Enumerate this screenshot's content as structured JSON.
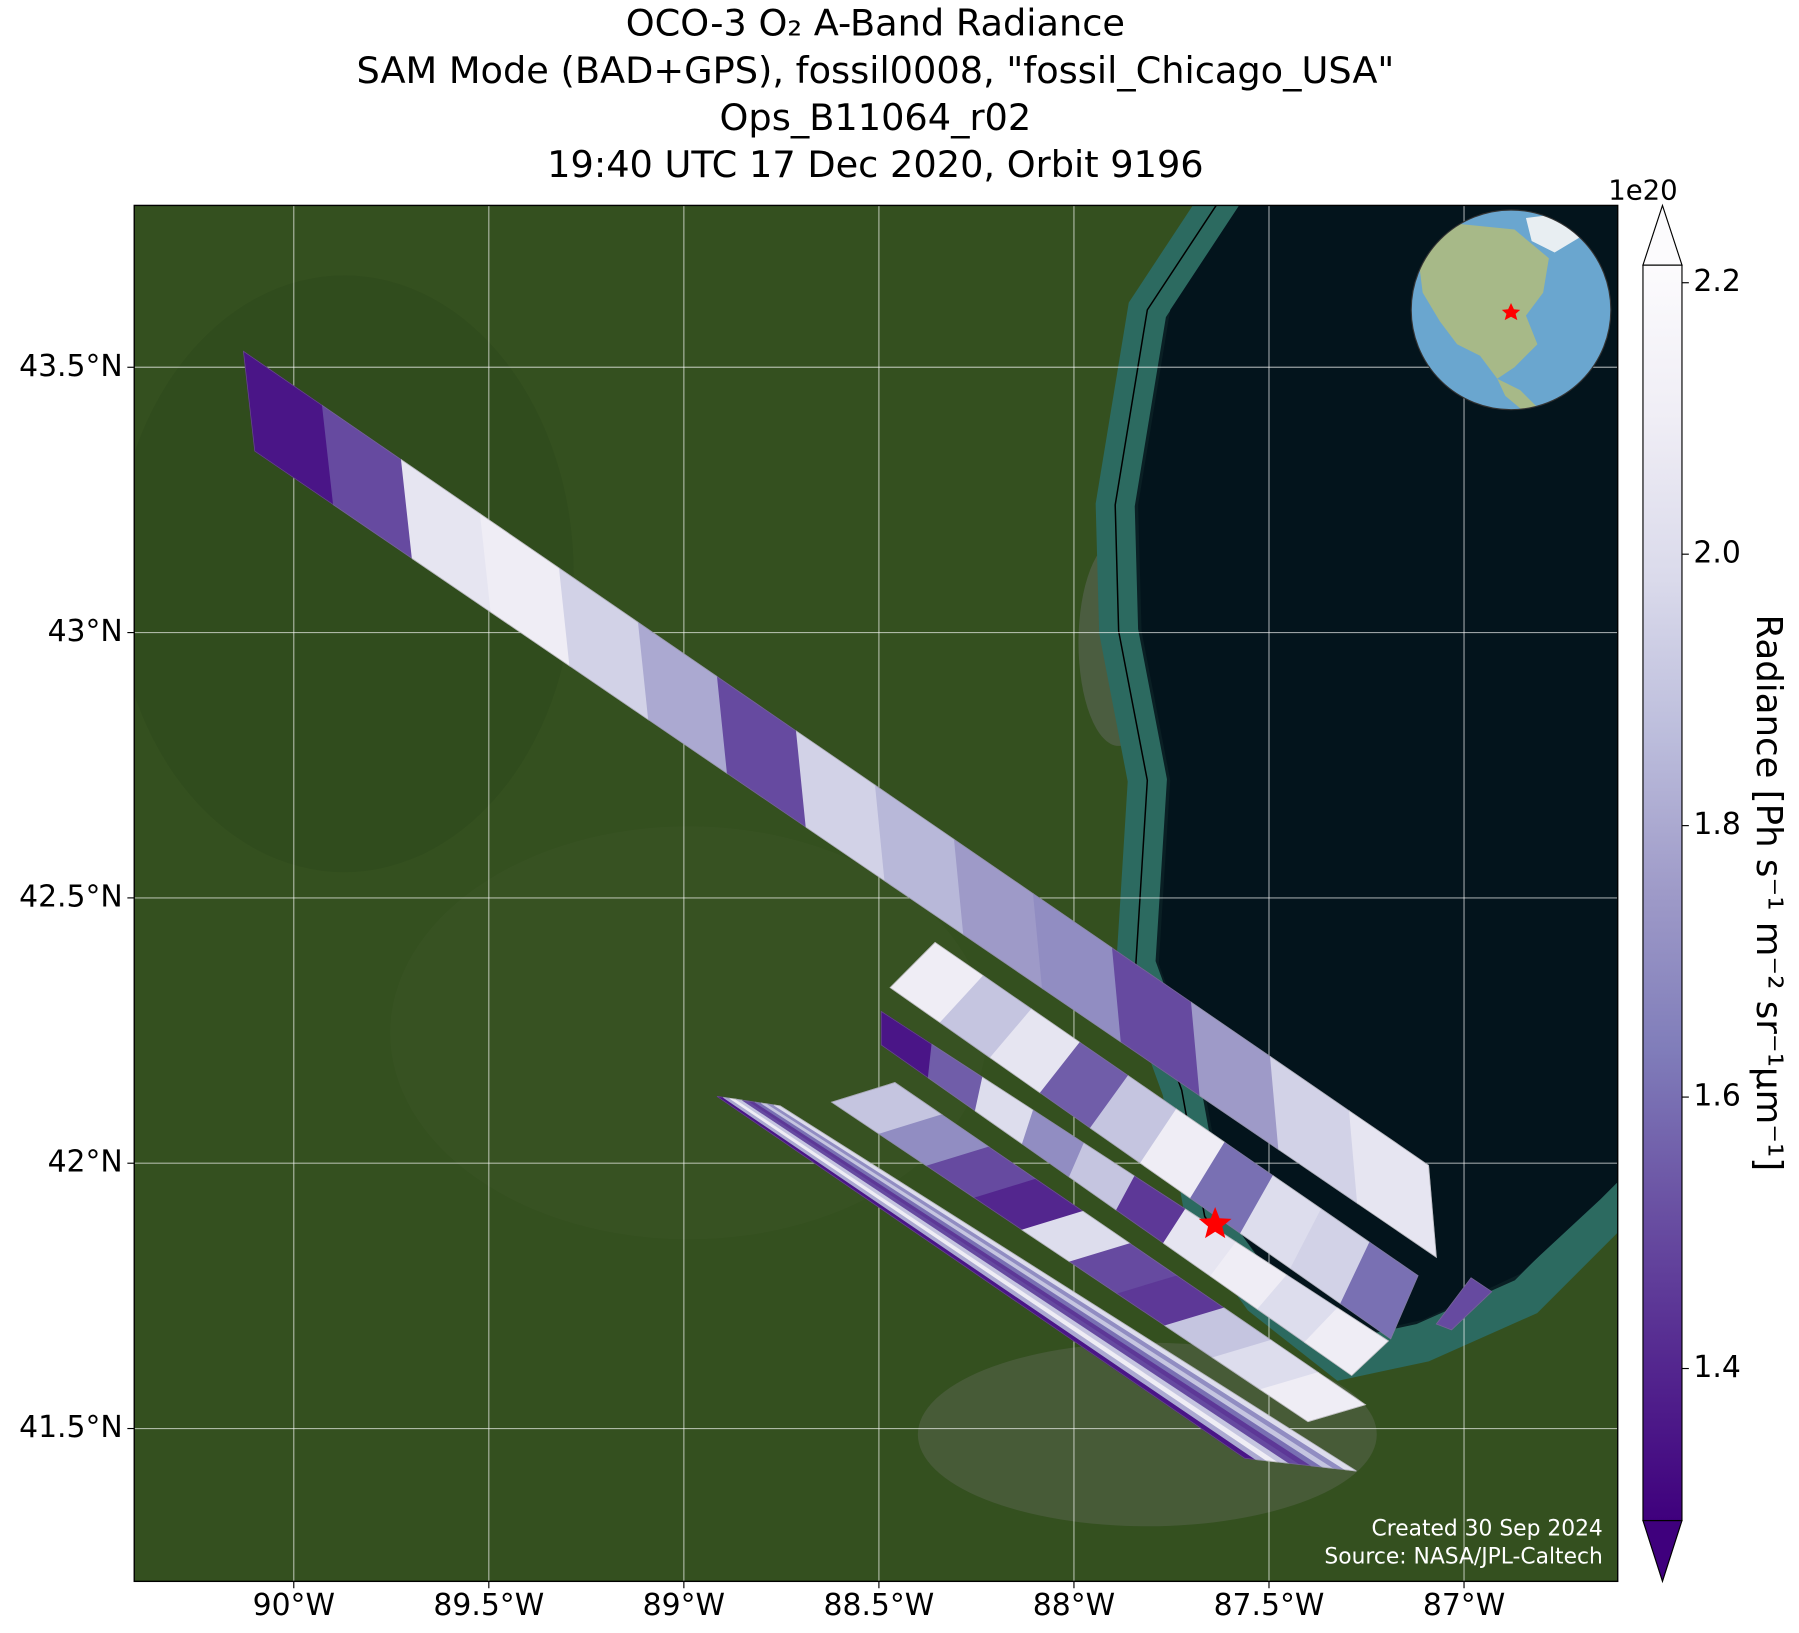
{
  "chart_data": {
    "type": "map",
    "title_lines": [
      "OCO-3 O₂ A-Band Radiance",
      "SAM Mode (BAD+GPS), fossil0008, \"fossil_Chicago_USA\"",
      "Ops_B11064_r02",
      "19:40 UTC 17 Dec 2020, Orbit 9196"
    ],
    "xlim": [
      -90.409,
      -86.606
    ],
    "ylim": [
      41.212,
      43.805
    ],
    "xticks": [
      {
        "value": -90,
        "label": "90°W"
      },
      {
        "value": -89.5,
        "label": "89.5°W"
      },
      {
        "value": -89,
        "label": "89°W"
      },
      {
        "value": -88.5,
        "label": "88.5°W"
      },
      {
        "value": -88,
        "label": "88°W"
      },
      {
        "value": -87.5,
        "label": "87.5°W"
      },
      {
        "value": -87,
        "label": "87°W"
      }
    ],
    "yticks": [
      {
        "value": 43.5,
        "label": "43.5°N"
      },
      {
        "value": 43,
        "label": "43°N"
      },
      {
        "value": 42.5,
        "label": "42.5°N"
      },
      {
        "value": 42,
        "label": "42°N"
      },
      {
        "value": 41.5,
        "label": "41.5°N"
      }
    ],
    "grid": true,
    "colorbar": {
      "label": "Radiance [Ph s⁻¹ m⁻² sr⁻¹μm⁻¹]",
      "exponent_label": "1e20",
      "lim": [
        1.288,
        2.213
      ],
      "ticks": [
        1.4,
        1.6,
        1.8,
        {
          "value": 2,
          "label": "2.0"
        },
        2.2
      ],
      "extend": "both",
      "colors": [
        "#3f007d",
        "#54278f",
        "#6a51a3",
        "#807dba",
        "#9e9ac8",
        "#bcbddc",
        "#dadaeb",
        "#efedf5",
        "#fcfbfd"
      ]
    },
    "swaths": [
      {
        "lon": [
          -90.129,
          -87.091,
          -87.071,
          -90.1
        ],
        "lat": [
          43.53,
          41.996,
          41.823,
          43.342
        ],
        "values": [
          1.35,
          1.5,
          2.05,
          2.1,
          1.95,
          1.8,
          1.5,
          1.95,
          1.85,
          1.75,
          1.7,
          1.5,
          1.75,
          1.95,
          2.05
        ]
      },
      {
        "lon": [
          -88.356,
          -87.118,
          -87.188,
          -88.471
        ],
        "lat": [
          42.416,
          41.788,
          41.669,
          42.331
        ],
        "values": [
          2.1,
          1.9,
          2.05,
          1.55,
          1.9,
          2.1,
          1.6,
          2.0,
          1.95,
          1.6
        ]
      },
      {
        "lon": [
          -88.494,
          -87.194,
          -87.288,
          -88.494
        ],
        "lat": [
          42.286,
          41.665,
          41.6,
          42.223
        ],
        "values": [
          1.35,
          1.55,
          2.0,
          1.7,
          1.9,
          1.45,
          2.05,
          2.1,
          2.0,
          2.1
        ]
      },
      {
        "lon": [
          -88.459,
          -87.253,
          -87.4,
          -88.621
        ],
        "lat": [
          42.152,
          41.545,
          41.513,
          42.115
        ],
        "values": [
          1.9,
          1.7,
          1.5,
          1.4,
          2.0,
          1.5,
          1.45,
          1.9,
          2.0,
          2.1
        ]
      },
      {
        "lon": [
          -88.915,
          -88.753,
          -87.276,
          -87.562
        ],
        "lat": [
          42.126,
          42.108,
          41.42,
          41.444
        ],
        "values": [
          1.35,
          1.8,
          2.1,
          1.9,
          1.5,
          1.45,
          1.6,
          1.9,
          1.7,
          2.0
        ]
      },
      {
        "lon": [
          -86.982,
          -86.929,
          -87.032,
          -87.071
        ],
        "lat": [
          41.784,
          41.758,
          41.686,
          41.697
        ],
        "values": [
          1.5
        ]
      }
    ],
    "marker": {
      "lon": -87.638,
      "lat": 41.885,
      "color": "#ff0000"
    },
    "annotations": [
      "Created 30 Sep 2024",
      "Source: NASA/JPL-Caltech"
    ]
  }
}
